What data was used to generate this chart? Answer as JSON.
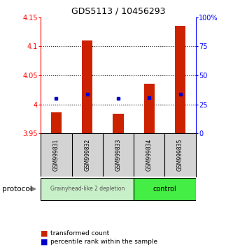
{
  "title": "GDS5113 / 10456293",
  "samples": [
    "GSM999831",
    "GSM999832",
    "GSM999833",
    "GSM999834",
    "GSM999835"
  ],
  "bar_bottoms": [
    3.95,
    3.95,
    3.95,
    3.95,
    3.95
  ],
  "bar_tops": [
    3.986,
    4.11,
    3.984,
    4.035,
    4.135
  ],
  "percentile_values": [
    4.01,
    4.017,
    4.01,
    4.012,
    4.018
  ],
  "ylim_left": [
    3.95,
    4.15
  ],
  "ylim_right": [
    0,
    100
  ],
  "yticks_left": [
    3.95,
    4.0,
    4.05,
    4.1,
    4.15
  ],
  "yticks_right": [
    0,
    25,
    50,
    75,
    100
  ],
  "ytick_labels_left": [
    "3.95",
    "4",
    "4.05",
    "4.1",
    "4.15"
  ],
  "ytick_labels_right": [
    "0",
    "25",
    "50",
    "75",
    "100%"
  ],
  "dotted_lines": [
    4.0,
    4.05,
    4.1
  ],
  "bar_color": "#cc2200",
  "dot_color": "#0000cc",
  "group1_indices": [
    0,
    1,
    2
  ],
  "group2_indices": [
    3,
    4
  ],
  "group1_label": "Grainyhead-like 2 depletion",
  "group2_label": "control",
  "group1_color": "#c8f0c8",
  "group2_color": "#44ee44",
  "protocol_label": "protocol",
  "legend1_label": "transformed count",
  "legend2_label": "percentile rank within the sample",
  "background_color": "#ffffff",
  "sample_bg_color": "#d3d3d3",
  "bar_width": 0.35
}
